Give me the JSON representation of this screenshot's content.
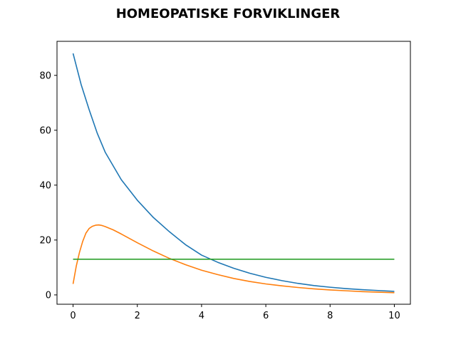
{
  "chart_data": {
    "type": "line",
    "title": "HOMEOPATISKE FORVIKLINGER",
    "xlabel": "",
    "ylabel": "",
    "xlim": [
      -0.5,
      10.5
    ],
    "ylim": [
      -3.4,
      92.4
    ],
    "xticks": [
      0,
      2,
      4,
      6,
      8,
      10
    ],
    "yticks": [
      0,
      20,
      40,
      60,
      80
    ],
    "grid": false,
    "legend": "none",
    "series": [
      {
        "color": "#1f77b4",
        "x": [
          0,
          0.25,
          0.5,
          0.75,
          1,
          1.5,
          2,
          2.5,
          3,
          3.5,
          4,
          4.5,
          5,
          5.5,
          6,
          6.5,
          7,
          7.5,
          8,
          8.5,
          9,
          9.5,
          10
        ],
        "y": [
          88,
          76.7,
          67.5,
          59.0,
          52.0,
          42.0,
          34.5,
          28.2,
          23.0,
          18.3,
          14.5,
          11.9,
          9.7,
          7.9,
          6.4,
          5.2,
          4.2,
          3.4,
          2.8,
          2.3,
          1.9,
          1.6,
          1.3
        ]
      },
      {
        "color": "#ff7f0e",
        "x": [
          0,
          0.1,
          0.2,
          0.3,
          0.4,
          0.5,
          0.6,
          0.7,
          0.8,
          0.9,
          1,
          1.25,
          1.5,
          2,
          2.5,
          3,
          3.5,
          4,
          4.5,
          5,
          5.5,
          6,
          6.5,
          7,
          7.5,
          8,
          8.5,
          9,
          9.5,
          10
        ],
        "y": [
          4,
          10.5,
          15.5,
          19.5,
          22.5,
          24.2,
          25.0,
          25.4,
          25.5,
          25.3,
          24.9,
          23.7,
          22.2,
          19.0,
          16.0,
          13.3,
          11.0,
          9.0,
          7.4,
          6.0,
          4.9,
          4.0,
          3.3,
          2.7,
          2.2,
          1.8,
          1.5,
          1.2,
          1.0,
          0.8
        ]
      },
      {
        "color": "#2ca02c",
        "x": [
          0,
          10
        ],
        "y": [
          13,
          13
        ]
      }
    ]
  }
}
